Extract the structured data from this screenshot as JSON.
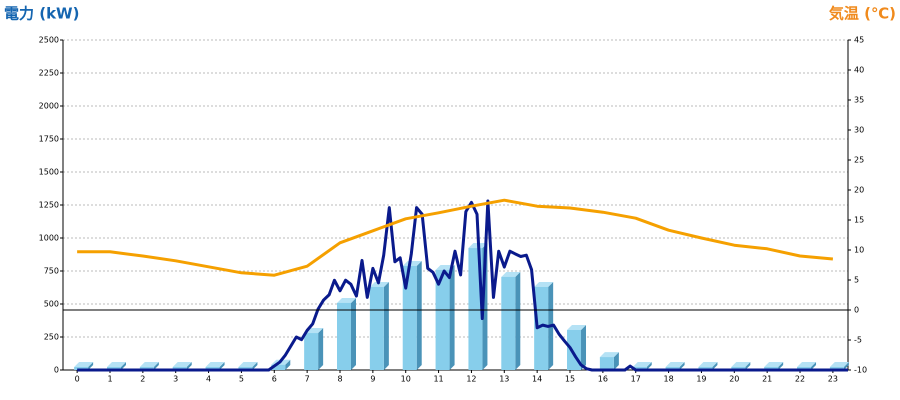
{
  "chart_data": {
    "type": "combo",
    "y_title": "電力 (kW)",
    "y2_title": "気温 (℃)",
    "xlim": [
      -0.43,
      23.46
    ],
    "xticks": [
      0,
      1,
      2,
      3,
      4,
      5,
      6,
      7,
      8,
      9,
      10,
      11,
      12,
      13,
      14,
      15,
      16,
      17,
      18,
      19,
      20,
      21,
      22,
      23
    ],
    "ylim": [
      0,
      2500
    ],
    "yticks": [
      0,
      250,
      500,
      750,
      1000,
      1250,
      1500,
      1750,
      2000,
      2250,
      2500
    ],
    "y2lim": [
      -10,
      45
    ],
    "y2ticks": [
      -10,
      -5,
      0,
      5,
      10,
      15,
      20,
      25,
      30,
      35,
      40,
      45
    ],
    "grid": true,
    "series": [
      {
        "type": "bar",
        "color": "#87ceeb",
        "x": [
          0,
          1,
          2,
          3,
          4,
          5,
          6,
          7,
          8,
          9,
          10,
          11,
          12,
          13,
          14,
          15,
          16,
          17,
          18,
          19,
          20,
          21,
          22,
          23
        ],
        "values": [
          0,
          0,
          0,
          0,
          0,
          0,
          40,
          280,
          508,
          629,
          788,
          758,
          924,
          705,
          629,
          303,
          98,
          0,
          0,
          0,
          0,
          0,
          0,
          0
        ]
      },
      {
        "type": "line",
        "color": "#0a1a8c",
        "x": [
          0,
          5.83,
          6.17,
          6.33,
          6.5,
          6.67,
          6.83,
          7.0,
          7.17,
          7.33,
          7.5,
          7.67,
          7.83,
          8.0,
          8.17,
          8.33,
          8.5,
          8.67,
          8.83,
          9.0,
          9.17,
          9.33,
          9.5,
          9.67,
          9.83,
          10.0,
          10.17,
          10.33,
          10.5,
          10.67,
          10.83,
          11.0,
          11.17,
          11.33,
          11.5,
          11.67,
          11.83,
          12.0,
          12.17,
          12.33,
          12.5,
          12.67,
          12.83,
          13.0,
          13.17,
          13.33,
          13.5,
          13.67,
          13.83,
          14.0,
          14.17,
          14.33,
          14.5,
          14.67,
          14.83,
          15.0,
          15.17,
          15.33,
          15.5,
          15.67,
          16.67,
          16.83,
          17.0,
          23.46
        ],
        "values": [
          0,
          0,
          60,
          110,
          180,
          250,
          230,
          300,
          350,
          460,
          530,
          570,
          680,
          600,
          680,
          650,
          560,
          830,
          550,
          770,
          660,
          870,
          1230,
          820,
          850,
          620,
          880,
          1230,
          1180,
          770,
          740,
          650,
          750,
          700,
          900,
          720,
          1200,
          1270,
          1180,
          390,
          1280,
          550,
          900,
          780,
          900,
          880,
          860,
          870,
          760,
          320,
          340,
          330,
          340,
          270,
          220,
          170,
          100,
          40,
          10,
          0,
          0,
          30,
          0,
          0
        ]
      },
      {
        "type": "line",
        "axis": "y2",
        "color": "#f5a000",
        "x": [
          0,
          1,
          2,
          3,
          4,
          5,
          6,
          7,
          8,
          9,
          10,
          11,
          12,
          13,
          14,
          15,
          16,
          17,
          18,
          19,
          20,
          21,
          22,
          23
        ],
        "values": [
          9.7,
          9.7,
          9.0,
          8.2,
          7.2,
          6.2,
          5.8,
          7.3,
          11.2,
          13.2,
          15.2,
          16.2,
          17.3,
          18.3,
          17.3,
          17.0,
          16.3,
          15.3,
          13.3,
          12.0,
          10.8,
          10.2,
          9.0,
          8.5
        ]
      }
    ]
  }
}
